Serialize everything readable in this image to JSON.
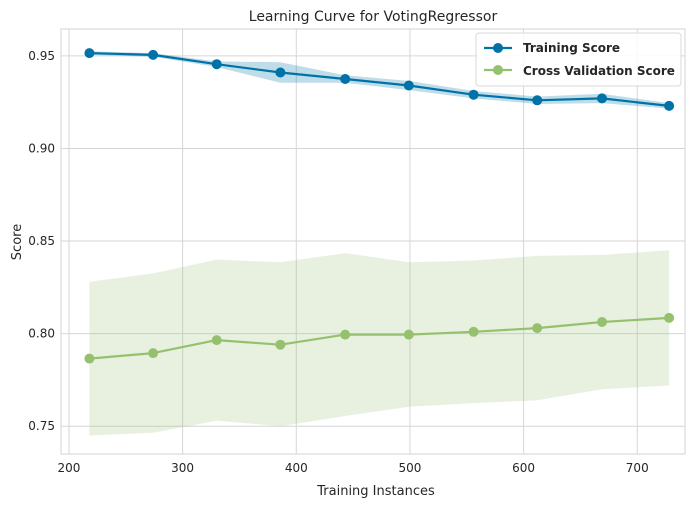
{
  "chart_data": {
    "type": "line",
    "title": "Learning Curve for VotingRegressor",
    "xlabel": "Training Instances",
    "ylabel": "Score",
    "xlim": [
      193,
      742
    ],
    "ylim": [
      0.735,
      0.9645
    ],
    "xticks": [
      200,
      300,
      400,
      500,
      600,
      700
    ],
    "yticks": [
      0.75,
      0.8,
      0.85,
      0.9,
      0.95
    ],
    "xtick_labels": [
      "200",
      "300",
      "400",
      "500",
      "600",
      "700"
    ],
    "ytick_labels": [
      "0.75",
      "0.80",
      "0.85",
      "0.90",
      "0.95"
    ],
    "grid": true,
    "legend": {
      "position": "top-right"
    },
    "x": [
      218,
      274,
      330,
      386,
      443,
      499,
      556,
      612,
      669,
      728
    ],
    "series": [
      {
        "name": "Training Score",
        "color": "#0072a7",
        "band_color": "#0072a7",
        "values": [
          0.9515,
          0.9505,
          0.9455,
          0.941,
          0.9375,
          0.934,
          0.929,
          0.926,
          0.927,
          0.923
        ],
        "band_lower": [
          0.9505,
          0.9495,
          0.944,
          0.9355,
          0.9355,
          0.9315,
          0.927,
          0.924,
          0.9245,
          0.9215
        ],
        "band_upper": [
          0.9525,
          0.9515,
          0.947,
          0.9465,
          0.9395,
          0.9365,
          0.931,
          0.928,
          0.9295,
          0.9245
        ]
      },
      {
        "name": "Cross Validation Score",
        "color": "#95c16f",
        "band_color": "#95c16f",
        "values": [
          0.7865,
          0.7895,
          0.7965,
          0.794,
          0.7995,
          0.7995,
          0.801,
          0.803,
          0.8063,
          0.8085
        ],
        "band_lower": [
          0.745,
          0.7465,
          0.753,
          0.75,
          0.7555,
          0.7605,
          0.7625,
          0.764,
          0.77,
          0.772
        ],
        "band_upper": [
          0.828,
          0.8325,
          0.84,
          0.8385,
          0.8435,
          0.8385,
          0.8395,
          0.842,
          0.8425,
          0.845
        ]
      }
    ]
  }
}
